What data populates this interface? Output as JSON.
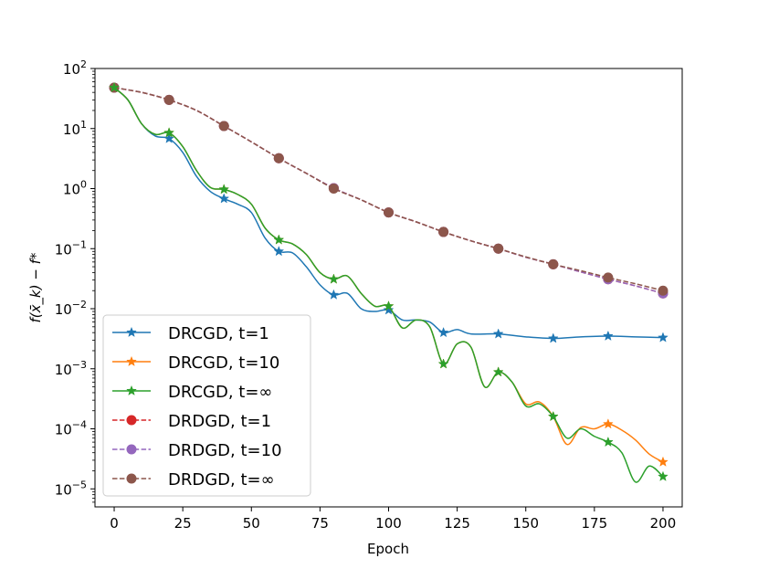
{
  "chart_data": {
    "type": "line",
    "title": "",
    "xlabel": "Epoch",
    "ylabel": "f(x̄_k) − f*",
    "yscale": "log",
    "xlim": [
      -7,
      207
    ],
    "ylim_exp": [
      -5.3,
      2
    ],
    "xticks": [
      0,
      25,
      50,
      75,
      100,
      125,
      150,
      175,
      200
    ],
    "ytick_exponents": [
      -5,
      -4,
      -3,
      -2,
      -1,
      0,
      1,
      2
    ],
    "ytick_base": "10",
    "legend_location": "lower-left",
    "series": [
      {
        "name": "DRCGD, t=1",
        "color": "#1f77b4",
        "linestyle": "solid",
        "marker": "star",
        "x": [
          0,
          20,
          40,
          60,
          80,
          100,
          120,
          140,
          160,
          180,
          200
        ],
        "y": [
          48,
          6.8,
          0.68,
          0.09,
          0.017,
          0.0095,
          0.004,
          0.0038,
          0.0032,
          0.0035,
          0.0033
        ],
        "curve": [
          [
            0,
            48
          ],
          [
            5,
            30
          ],
          [
            10,
            12
          ],
          [
            15,
            7.5
          ],
          [
            20,
            6.8
          ],
          [
            25,
            4
          ],
          [
            30,
            1.6
          ],
          [
            35,
            0.9
          ],
          [
            40,
            0.68
          ],
          [
            45,
            0.55
          ],
          [
            50,
            0.4
          ],
          [
            55,
            0.15
          ],
          [
            60,
            0.09
          ],
          [
            65,
            0.085
          ],
          [
            70,
            0.05
          ],
          [
            75,
            0.025
          ],
          [
            80,
            0.017
          ],
          [
            85,
            0.018
          ],
          [
            90,
            0.01
          ],
          [
            95,
            0.009
          ],
          [
            100,
            0.0095
          ],
          [
            105,
            0.0065
          ],
          [
            110,
            0.0065
          ],
          [
            115,
            0.006
          ],
          [
            120,
            0.004
          ],
          [
            125,
            0.0045
          ],
          [
            130,
            0.0038
          ],
          [
            140,
            0.0038
          ],
          [
            150,
            0.0034
          ],
          [
            160,
            0.0032
          ],
          [
            170,
            0.0034
          ],
          [
            180,
            0.0035
          ],
          [
            190,
            0.0034
          ],
          [
            200,
            0.0033
          ]
        ]
      },
      {
        "name": "DRCGD, t=10",
        "color": "#ff7f0e",
        "linestyle": "solid",
        "marker": "star",
        "x": [
          0,
          20,
          40,
          60,
          80,
          100,
          120,
          140,
          160,
          180,
          200
        ],
        "y": [
          48,
          8.5,
          0.97,
          0.14,
          0.031,
          0.011,
          0.0012,
          0.00088,
          0.00016,
          0.00012,
          2.8e-05
        ],
        "curve": [
          [
            0,
            48
          ],
          [
            5,
            30
          ],
          [
            10,
            12
          ],
          [
            15,
            8
          ],
          [
            20,
            8.5
          ],
          [
            25,
            5
          ],
          [
            30,
            2
          ],
          [
            35,
            1.05
          ],
          [
            40,
            0.97
          ],
          [
            45,
            0.8
          ],
          [
            50,
            0.55
          ],
          [
            55,
            0.22
          ],
          [
            60,
            0.14
          ],
          [
            65,
            0.12
          ],
          [
            70,
            0.08
          ],
          [
            75,
            0.04
          ],
          [
            80,
            0.031
          ],
          [
            85,
            0.035
          ],
          [
            90,
            0.018
          ],
          [
            95,
            0.011
          ],
          [
            100,
            0.011
          ],
          [
            105,
            0.0048
          ],
          [
            110,
            0.0065
          ],
          [
            115,
            0.005
          ],
          [
            120,
            0.0012
          ],
          [
            125,
            0.0026
          ],
          [
            130,
            0.0023
          ],
          [
            135,
            0.0005
          ],
          [
            140,
            0.00088
          ],
          [
            145,
            0.0006
          ],
          [
            150,
            0.00026
          ],
          [
            155,
            0.00028
          ],
          [
            160,
            0.00016
          ],
          [
            165,
            5.5e-05
          ],
          [
            170,
            0.000105
          ],
          [
            175,
            0.0001
          ],
          [
            180,
            0.00012
          ],
          [
            185,
            9.5e-05
          ],
          [
            190,
            6.5e-05
          ],
          [
            195,
            3.8e-05
          ],
          [
            200,
            2.8e-05
          ]
        ]
      },
      {
        "name": "DRCGD, t=∞",
        "color": "#2ca02c",
        "linestyle": "solid",
        "marker": "star",
        "x": [
          0,
          20,
          40,
          60,
          80,
          100,
          120,
          140,
          160,
          180,
          200
        ],
        "y": [
          48,
          8.5,
          0.97,
          0.14,
          0.031,
          0.011,
          0.0012,
          0.00088,
          0.00016,
          6e-05,
          1.6e-05
        ],
        "curve": [
          [
            0,
            48
          ],
          [
            5,
            30
          ],
          [
            10,
            12
          ],
          [
            15,
            8
          ],
          [
            20,
            8.5
          ],
          [
            25,
            5
          ],
          [
            30,
            2
          ],
          [
            35,
            1.05
          ],
          [
            40,
            0.97
          ],
          [
            45,
            0.8
          ],
          [
            50,
            0.55
          ],
          [
            55,
            0.22
          ],
          [
            60,
            0.14
          ],
          [
            65,
            0.12
          ],
          [
            70,
            0.08
          ],
          [
            75,
            0.04
          ],
          [
            80,
            0.031
          ],
          [
            85,
            0.035
          ],
          [
            90,
            0.018
          ],
          [
            95,
            0.011
          ],
          [
            100,
            0.011
          ],
          [
            105,
            0.0048
          ],
          [
            110,
            0.0065
          ],
          [
            115,
            0.005
          ],
          [
            120,
            0.0012
          ],
          [
            125,
            0.0026
          ],
          [
            130,
            0.0023
          ],
          [
            135,
            0.0005
          ],
          [
            140,
            0.00088
          ],
          [
            145,
            0.0006
          ],
          [
            150,
            0.00024
          ],
          [
            155,
            0.00026
          ],
          [
            160,
            0.00016
          ],
          [
            165,
            7e-05
          ],
          [
            170,
            0.0001
          ],
          [
            175,
            7.5e-05
          ],
          [
            180,
            6e-05
          ],
          [
            185,
            4e-05
          ],
          [
            190,
            1.3e-05
          ],
          [
            195,
            2.4e-05
          ],
          [
            200,
            1.6e-05
          ]
        ]
      },
      {
        "name": "DRDGD, t=1",
        "color": "#d62728",
        "linestyle": "dashed",
        "marker": "circle",
        "x": [
          0,
          20,
          40,
          60,
          80,
          100,
          120,
          140,
          160,
          180,
          200
        ],
        "y": [
          48,
          30,
          11,
          3.2,
          1.02,
          0.4,
          0.19,
          0.1,
          0.055,
          0.031,
          0.018
        ],
        "curve": [
          [
            0,
            48
          ],
          [
            10,
            40
          ],
          [
            20,
            30
          ],
          [
            30,
            20
          ],
          [
            40,
            11
          ],
          [
            50,
            6
          ],
          [
            60,
            3.2
          ],
          [
            70,
            1.8
          ],
          [
            80,
            1.02
          ],
          [
            90,
            0.65
          ],
          [
            100,
            0.4
          ],
          [
            110,
            0.28
          ],
          [
            120,
            0.19
          ],
          [
            130,
            0.135
          ],
          [
            140,
            0.1
          ],
          [
            150,
            0.072
          ],
          [
            160,
            0.055
          ],
          [
            170,
            0.041
          ],
          [
            180,
            0.031
          ],
          [
            190,
            0.024
          ],
          [
            200,
            0.018
          ]
        ]
      },
      {
        "name": "DRDGD, t=10",
        "color": "#9467bd",
        "linestyle": "dashed",
        "marker": "circle",
        "x": [
          0,
          20,
          40,
          60,
          80,
          100,
          120,
          140,
          160,
          180,
          200
        ],
        "y": [
          48,
          30,
          11,
          3.2,
          1.02,
          0.4,
          0.19,
          0.1,
          0.055,
          0.031,
          0.018
        ],
        "curve": [
          [
            0,
            48
          ],
          [
            10,
            40
          ],
          [
            20,
            30
          ],
          [
            30,
            20
          ],
          [
            40,
            11
          ],
          [
            50,
            6
          ],
          [
            60,
            3.2
          ],
          [
            70,
            1.8
          ],
          [
            80,
            1.02
          ],
          [
            90,
            0.65
          ],
          [
            100,
            0.4
          ],
          [
            110,
            0.28
          ],
          [
            120,
            0.19
          ],
          [
            130,
            0.135
          ],
          [
            140,
            0.1
          ],
          [
            150,
            0.072
          ],
          [
            160,
            0.055
          ],
          [
            170,
            0.041
          ],
          [
            180,
            0.031
          ],
          [
            190,
            0.024
          ],
          [
            200,
            0.018
          ]
        ]
      },
      {
        "name": "DRDGD, t=∞",
        "color": "#8c564b",
        "linestyle": "dashed",
        "marker": "circle",
        "x": [
          0,
          20,
          40,
          60,
          80,
          100,
          120,
          140,
          160,
          180,
          200
        ],
        "y": [
          48,
          30,
          11,
          3.2,
          1.0,
          0.4,
          0.19,
          0.1,
          0.055,
          0.033,
          0.02
        ],
        "curve": [
          [
            0,
            48
          ],
          [
            10,
            40
          ],
          [
            20,
            30
          ],
          [
            30,
            20
          ],
          [
            40,
            11
          ],
          [
            50,
            6
          ],
          [
            60,
            3.2
          ],
          [
            70,
            1.8
          ],
          [
            80,
            1.0
          ],
          [
            90,
            0.65
          ],
          [
            100,
            0.4
          ],
          [
            110,
            0.28
          ],
          [
            120,
            0.19
          ],
          [
            130,
            0.135
          ],
          [
            140,
            0.1
          ],
          [
            150,
            0.073
          ],
          [
            160,
            0.055
          ],
          [
            170,
            0.043
          ],
          [
            180,
            0.033
          ],
          [
            190,
            0.026
          ],
          [
            200,
            0.02
          ]
        ]
      }
    ]
  }
}
